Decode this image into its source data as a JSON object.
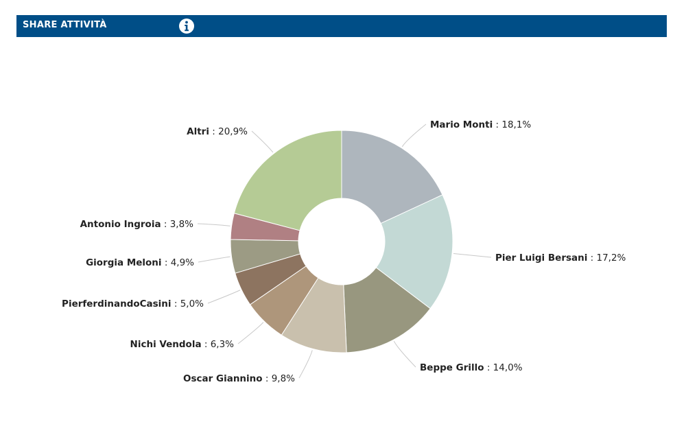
{
  "header": {
    "title": "SHARE ATTIVITÀ",
    "info_icon": "info-icon",
    "background": "#004e87"
  },
  "chart_data": {
    "type": "pie",
    "variant": "donut",
    "slices": [
      {
        "name": "Mario Monti",
        "value": 18.1,
        "label": "18,1%",
        "color": "#aeb6bd"
      },
      {
        "name": "Pier Luigi Bersani",
        "value": 17.2,
        "label": "17,2%",
        "color": "#c3d9d5"
      },
      {
        "name": "Beppe Grillo",
        "value": 14.0,
        "label": "14,0%",
        "color": "#98977f"
      },
      {
        "name": "Oscar Giannino",
        "value": 9.8,
        "label": "9,8%",
        "color": "#c9c0ad"
      },
      {
        "name": "Nichi Vendola",
        "value": 6.3,
        "label": "6,3%",
        "color": "#ae967b"
      },
      {
        "name": "PierferdinandoCasini",
        "value": 5.0,
        "label": "5,0%",
        "color": "#8d7460"
      },
      {
        "name": "Giorgia Meloni",
        "value": 4.9,
        "label": "4,9%",
        "color": "#9c9b84"
      },
      {
        "name": "Antonio Ingroia",
        "value": 3.8,
        "label": "3,8%",
        "color": "#b08083"
      },
      {
        "name": "Altri",
        "value": 20.9,
        "label": "20,9%",
        "color": "#b5cb95"
      }
    ]
  }
}
